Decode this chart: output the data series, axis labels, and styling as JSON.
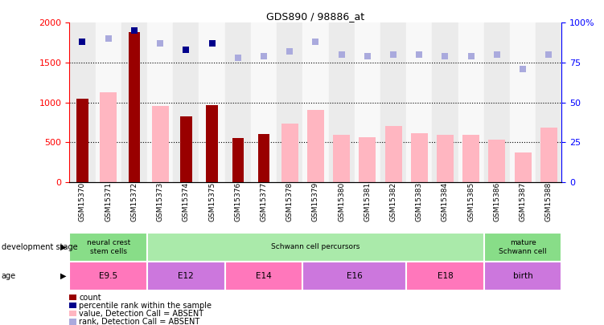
{
  "title": "GDS890 / 98886_at",
  "samples": [
    "GSM15370",
    "GSM15371",
    "GSM15372",
    "GSM15373",
    "GSM15374",
    "GSM15375",
    "GSM15376",
    "GSM15377",
    "GSM15378",
    "GSM15379",
    "GSM15380",
    "GSM15381",
    "GSM15382",
    "GSM15383",
    "GSM15384",
    "GSM15385",
    "GSM15386",
    "GSM15387",
    "GSM15388"
  ],
  "count_values": [
    1050,
    null,
    1880,
    null,
    820,
    970,
    550,
    600,
    null,
    null,
    null,
    null,
    null,
    null,
    null,
    null,
    null,
    null,
    null
  ],
  "absent_value_bars": [
    null,
    1130,
    null,
    960,
    null,
    null,
    null,
    null,
    730,
    910,
    590,
    560,
    700,
    615,
    595,
    595,
    530,
    375,
    680
  ],
  "percentile_rank": [
    88,
    null,
    95,
    null,
    83,
    87,
    null,
    null,
    null,
    null,
    null,
    null,
    null,
    null,
    null,
    null,
    null,
    null,
    null
  ],
  "absent_rank_values": [
    null,
    90,
    null,
    87,
    null,
    null,
    78,
    79,
    82,
    88,
    80,
    79,
    80,
    80,
    79,
    79,
    80,
    71,
    80
  ],
  "count_color": "#990000",
  "absent_bar_color": "#FFB6C1",
  "percentile_color": "#00008B",
  "absent_rank_color": "#AAAADD",
  "ylim_left": [
    0,
    2000
  ],
  "ylim_right": [
    0,
    100
  ],
  "yticks_left": [
    0,
    500,
    1000,
    1500,
    2000
  ],
  "yticks_right": [
    0,
    25,
    50,
    75,
    100
  ],
  "col_bg_even": "#EBEBEB",
  "col_bg_odd": "#F8F8F8",
  "dev_stage_groups": [
    {
      "label": "neural crest\nstem cells",
      "start": 0,
      "end": 3,
      "color": "#88DD88"
    },
    {
      "label": "Schwann cell percursors",
      "start": 3,
      "end": 16,
      "color": "#AAEAAA"
    },
    {
      "label": "mature\nSchwann cell",
      "start": 16,
      "end": 19,
      "color": "#88DD88"
    }
  ],
  "age_groups": [
    {
      "label": "E9.5",
      "start": 0,
      "end": 3,
      "color": "#FF77BB"
    },
    {
      "label": "E12",
      "start": 3,
      "end": 6,
      "color": "#CC77DD"
    },
    {
      "label": "E14",
      "start": 6,
      "end": 9,
      "color": "#FF77BB"
    },
    {
      "label": "E16",
      "start": 9,
      "end": 13,
      "color": "#CC77DD"
    },
    {
      "label": "E18",
      "start": 13,
      "end": 16,
      "color": "#FF77BB"
    },
    {
      "label": "birth",
      "start": 16,
      "end": 19,
      "color": "#CC77DD"
    }
  ],
  "legend_items": [
    {
      "label": "count",
      "color": "#990000"
    },
    {
      "label": "percentile rank within the sample",
      "color": "#00008B"
    },
    {
      "label": "value, Detection Call = ABSENT",
      "color": "#FFB6C1"
    },
    {
      "label": "rank, Detection Call = ABSENT",
      "color": "#AAAADD"
    }
  ]
}
